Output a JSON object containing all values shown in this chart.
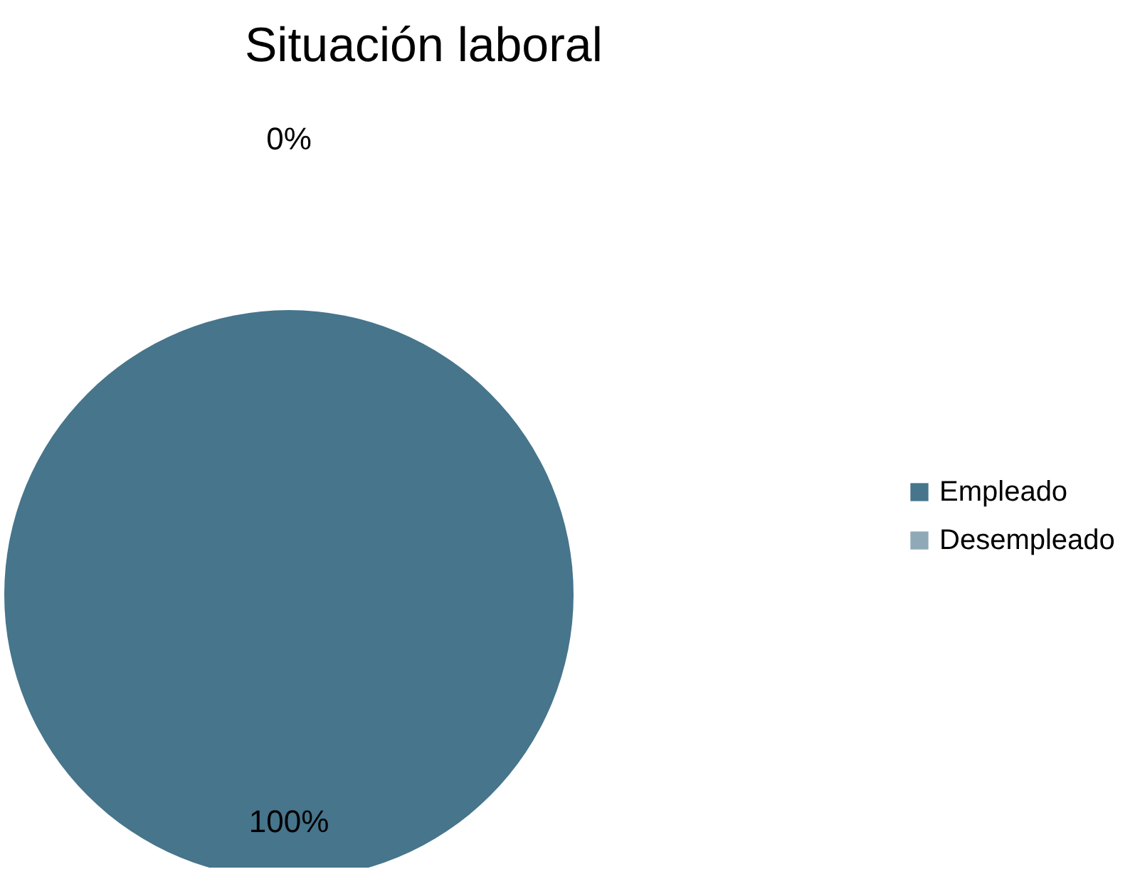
{
  "chart_data": {
    "type": "pie",
    "title": "Situación laboral",
    "categories": [
      "Empleado",
      "Desempleado"
    ],
    "values": [
      100,
      0
    ],
    "colors": [
      "#46758c",
      "#8fa9b8"
    ],
    "value_labels": [
      "100%",
      "0%"
    ],
    "legend": "right"
  }
}
